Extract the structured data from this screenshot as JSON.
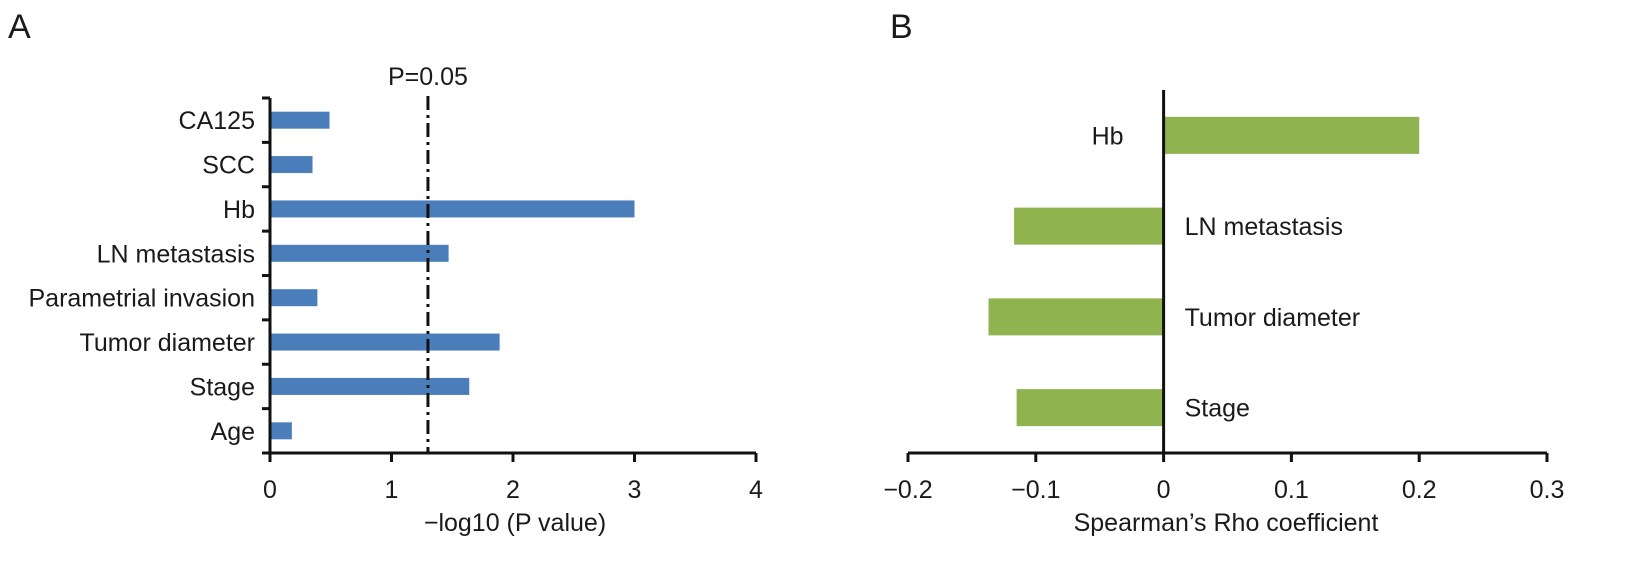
{
  "panels": [
    {
      "label": "A"
    },
    {
      "label": "B"
    }
  ],
  "chart_data": [
    {
      "type": "bar",
      "orientation": "horizontal",
      "categories": [
        "CA125",
        "SCC",
        "Hb",
        "LN metastasis",
        "Parametrial invasion",
        "Tumor diameter",
        "Stage",
        "Age"
      ],
      "values": [
        0.49,
        0.35,
        3.0,
        1.47,
        0.39,
        1.89,
        1.64,
        0.18
      ],
      "xlabel": "−log10 (P value)",
      "xlim": [
        0,
        4
      ],
      "xticks": [
        "0",
        "1",
        "2",
        "3",
        "4"
      ],
      "reference_line": {
        "value": 1.3,
        "label": "P=0.05",
        "style": "dash-dot"
      },
      "bar_color": "#4a7ebb",
      "grid": false
    },
    {
      "type": "bar",
      "orientation": "horizontal",
      "categories": [
        "Hb",
        "LN metastasis",
        "Tumor diameter",
        "Stage"
      ],
      "values": [
        0.2,
        -0.117,
        -0.137,
        -0.115
      ],
      "xlabel": "Spearman’s Rho coefficient",
      "xlim": [
        -0.2,
        0.3
      ],
      "xticks": [
        "−0.2",
        "−0.1",
        "0",
        "0.1",
        "0.2",
        "0.3"
      ],
      "bar_color": "#8fb34f",
      "grid": false
    }
  ]
}
